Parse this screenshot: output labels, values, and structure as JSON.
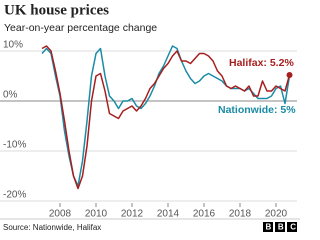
{
  "chart_data": {
    "type": "line",
    "title": "UK house prices",
    "subtitle": "Year-on-year percentage change",
    "x": [
      2007,
      2007.25,
      2007.5,
      2007.75,
      2008,
      2008.25,
      2008.5,
      2008.75,
      2009,
      2009.25,
      2009.5,
      2009.75,
      2010,
      2010.25,
      2010.5,
      2010.75,
      2011,
      2011.25,
      2011.5,
      2011.75,
      2012,
      2012.25,
      2012.5,
      2012.75,
      2013,
      2013.25,
      2013.5,
      2013.75,
      2014,
      2014.25,
      2014.5,
      2014.75,
      2015,
      2015.25,
      2015.5,
      2015.75,
      2016,
      2016.25,
      2016.5,
      2016.75,
      2017,
      2017.25,
      2017.5,
      2017.75,
      2018,
      2018.25,
      2018.5,
      2018.75,
      2019,
      2019.25,
      2019.5,
      2019.75,
      2020,
      2020.25,
      2020.5,
      2020.75
    ],
    "series": [
      {
        "color": "#a71e1e",
        "end_dot": true,
        "values": [
          10.5,
          11,
          10,
          6,
          1.5,
          -4,
          -10,
          -15,
          -17.5,
          -15,
          -9,
          0,
          5,
          5.5,
          2,
          -2.5,
          -3,
          -3.5,
          -2,
          -1.5,
          -1,
          -2,
          -1,
          0.5,
          2.5,
          3.5,
          5,
          6.5,
          7.5,
          9,
          10,
          8,
          8,
          7.5,
          8.5,
          9.5,
          9.5,
          9,
          8,
          6,
          5,
          3,
          2.5,
          3,
          2.5,
          2,
          3,
          1,
          1,
          4,
          2,
          2,
          3,
          2.5,
          2,
          5.2
        ]
      },
      {
        "color": "#1a8ba6",
        "end_dot": false,
        "values": [
          9.5,
          10.5,
          9.5,
          5,
          1,
          -6,
          -11,
          -15,
          -17,
          -12,
          -4,
          5,
          9.5,
          10.5,
          5,
          1,
          0,
          -1.5,
          0,
          0,
          0.5,
          -1,
          -1.5,
          -0.5,
          1,
          3,
          5.5,
          7,
          9,
          11,
          10.5,
          8,
          6,
          4.5,
          3.5,
          4,
          5,
          5.5,
          5,
          4.5,
          4,
          3,
          2.5,
          2.5,
          2.5,
          2,
          2.5,
          1.5,
          0.5,
          0.5,
          0.5,
          1,
          2.5,
          3,
          -0.5,
          5
        ]
      }
    ],
    "annotations": [
      "Halifax: 5.2%",
      "Nationwide: 5%"
    ],
    "xlim": [
      2006.5,
      2021
    ],
    "xticks": [
      2008,
      2010,
      2012,
      2014,
      2016,
      2018,
      2020
    ],
    "ylim": [
      -21,
      12
    ],
    "yticks": [
      {
        "value": 10,
        "label": "10%"
      },
      {
        "value": 0,
        "label": "0%"
      },
      {
        "value": -10,
        "label": "-10%"
      },
      {
        "value": -20,
        "label": "-20%"
      }
    ],
    "grid": true,
    "source": "Source: Nationwide, Halifax",
    "logo": "BBC"
  }
}
